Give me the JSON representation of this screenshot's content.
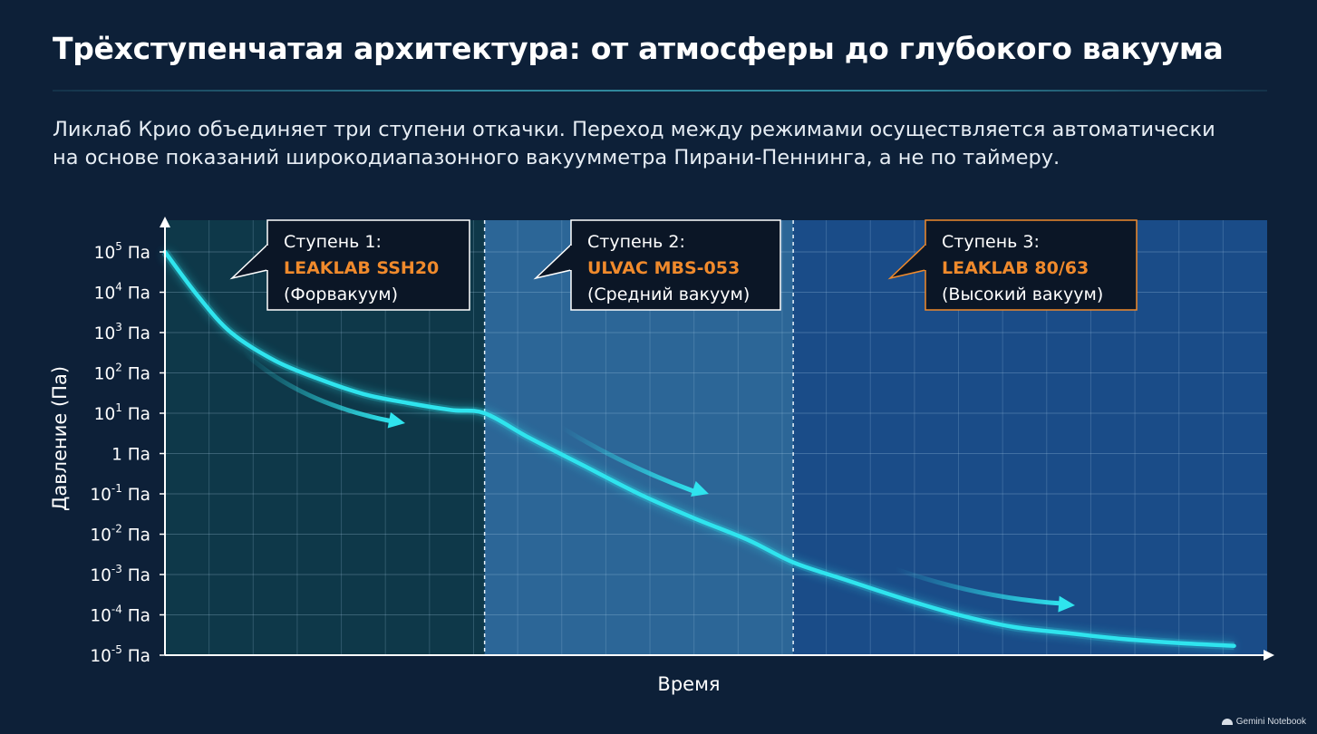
{
  "header": {
    "title": "Трёхступенчатая архитектура: от атмосферы до глубокого вакуума",
    "subtitle": "Ликлаб Крио объединяет три ступени откачки. Переход между режимами осуществляется автоматически на основе показаний широкодиапазонного вакуумметра Пирани-Пеннинга, а не по таймеру."
  },
  "chart_data": {
    "type": "line",
    "xlabel": "Время",
    "ylabel": "Давление (Па)",
    "y_scale": "log",
    "ylim": [
      1e-05,
      100000.0
    ],
    "y_ticks": [
      {
        "value": 100000,
        "base": "10",
        "exp": "5",
        "unit": "Па"
      },
      {
        "value": 10000,
        "base": "10",
        "exp": "4",
        "unit": "Па"
      },
      {
        "value": 1000,
        "base": "10",
        "exp": "3",
        "unit": "Па"
      },
      {
        "value": 100,
        "base": "10",
        "exp": "2",
        "unit": "Па"
      },
      {
        "value": 10,
        "base": "10",
        "exp": "1",
        "unit": "Па"
      },
      {
        "value": 1,
        "base": "1",
        "exp": "",
        "unit": "Па"
      },
      {
        "value": 0.1,
        "base": "10",
        "exp": "-1",
        "unit": "Па"
      },
      {
        "value": 0.01,
        "base": "10",
        "exp": "-2",
        "unit": "Па"
      },
      {
        "value": 0.001,
        "base": "10",
        "exp": "-3",
        "unit": "Па"
      },
      {
        "value": 0.0001,
        "base": "10",
        "exp": "-4",
        "unit": "Па"
      },
      {
        "value": 1e-05,
        "base": "10",
        "exp": "-5",
        "unit": "Па"
      }
    ],
    "x_tick_labels": "none",
    "grid": true,
    "stages": [
      {
        "label": "Ступень 1:",
        "name": "LEAKLAB SSH20",
        "mode": "(Форвакуум)",
        "x_range": [
          0,
          0.29
        ]
      },
      {
        "label": "Ступень 2:",
        "name": "ULVAC MBS-053",
        "mode": "(Средний вакуум)",
        "x_range": [
          0.29,
          0.57
        ]
      },
      {
        "label": "Ступень 3:",
        "name": "LEAKLAB 80/63",
        "mode": "(Высокий вакуум)",
        "x_range": [
          0.57,
          1.0
        ]
      }
    ],
    "series": [
      {
        "x": [
          0,
          0.03,
          0.06,
          0.1,
          0.14,
          0.18,
          0.22,
          0.26,
          0.29,
          0.33,
          0.38,
          0.43,
          0.48,
          0.53,
          0.57,
          0.62,
          0.67,
          0.72,
          0.77,
          0.82,
          0.87,
          0.92,
          0.97
        ],
        "y": [
          100000,
          8000,
          1000,
          200,
          70,
          30,
          18,
          12,
          10,
          2.5,
          0.5,
          0.1,
          0.025,
          0.007,
          0.002,
          0.0007,
          0.00025,
          0.0001,
          5e-05,
          3.5e-05,
          2.5e-05,
          2e-05,
          1.7e-05
        ]
      }
    ],
    "colors": {
      "curve": "#2fe4ee",
      "stage1_bg": "#0f3a4a",
      "stage2_bg": "#2e6a9c",
      "stage3_bg": "#1b4f8c",
      "stage1_accent": "#ffffff",
      "stage2_accent": "#ffffff",
      "stage3_accent": "#f08a2c",
      "brand_name": "#f08a2c"
    }
  },
  "footer": {
    "brand": "Gemini Notebook"
  }
}
